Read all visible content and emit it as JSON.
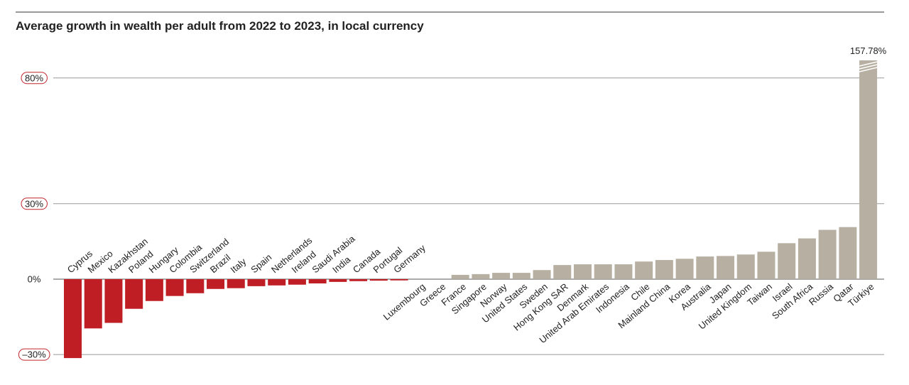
{
  "chart_data": {
    "type": "bar",
    "title": "Average growth in wealth per adult from 2022 to 2023, in local currency",
    "categories": [
      "Cyprus",
      "Mexico",
      "Kazakhstan",
      "Poland",
      "Hungary",
      "Colombia",
      "Switzerland",
      "Brazil",
      "Italy",
      "Spain",
      "Netherlands",
      "Ireland",
      "Saudi Arabia",
      "India",
      "Canada",
      "Portugal",
      "Germany",
      "Luxembourg",
      "Greece",
      "France",
      "Singapore",
      "Norway",
      "United States",
      "Sweden",
      "Hong Kong SAR",
      "Denmark",
      "United Arab Emirates",
      "Indonesia",
      "Chile",
      "Mainland China",
      "Korea",
      "Australia",
      "Japan",
      "United Kingdom",
      "Taiwan",
      "Israel",
      "South Africa",
      "Russia",
      "Qatar",
      "Türkiye"
    ],
    "values": [
      -31.4,
      -19.6,
      -17.4,
      -11.8,
      -8.7,
      -6.7,
      -5.6,
      -3.9,
      -3.6,
      -2.8,
      -2.5,
      -2.2,
      -1.7,
      -1.1,
      -0.8,
      -0.6,
      -0.5,
      0,
      0,
      1.7,
      2.0,
      2.5,
      2.5,
      3.6,
      5.6,
      5.9,
      5.9,
      5.9,
      7.0,
      7.6,
      8.1,
      9.0,
      9.2,
      9.8,
      10.9,
      14.3,
      16.2,
      19.6,
      20.7,
      157.78
    ],
    "value_labels": [
      null,
      null,
      null,
      null,
      null,
      null,
      null,
      null,
      null,
      null,
      null,
      null,
      null,
      null,
      null,
      null,
      null,
      null,
      null,
      null,
      null,
      null,
      null,
      null,
      null,
      null,
      null,
      null,
      null,
      null,
      null,
      null,
      null,
      null,
      null,
      null,
      null,
      null,
      null,
      "157.78%"
    ],
    "negative_color": "#be1e24",
    "positive_color": "#b7b0a2",
    "ylim": [
      -32.5,
      87
    ],
    "yticks": [
      {
        "value": 80,
        "label": "80%"
      },
      {
        "value": 30,
        "label": "30%"
      },
      {
        "value": 0,
        "label": "0%"
      },
      {
        "value": -30,
        "label": "–30%"
      }
    ],
    "grid": true
  }
}
